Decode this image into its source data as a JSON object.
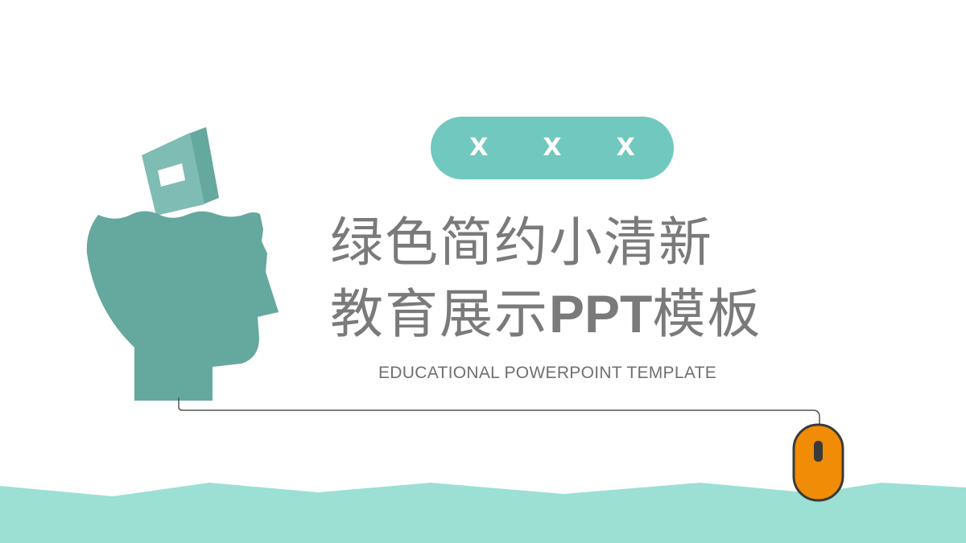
{
  "slide": {
    "badge": {
      "items": [
        "X",
        "X",
        "X"
      ]
    },
    "title": {
      "line1": "绿色简约小清新",
      "line2_pre": "教育展示",
      "line2_latin": "PPT",
      "line2_post": "模板"
    },
    "subtitle": "EDUCATIONAL POWERPOINT TEMPLATE"
  },
  "colors": {
    "head": "#65a89e",
    "book": "#7fbcb3",
    "badge": "#71c8bf",
    "wave": "#9be0d3",
    "mouse": "#f08c05",
    "mouse_outline": "#3a3a3a",
    "title_text": "#7a7a7a"
  },
  "icons": [
    "head-icon",
    "book-icon",
    "mouse-icon"
  ]
}
